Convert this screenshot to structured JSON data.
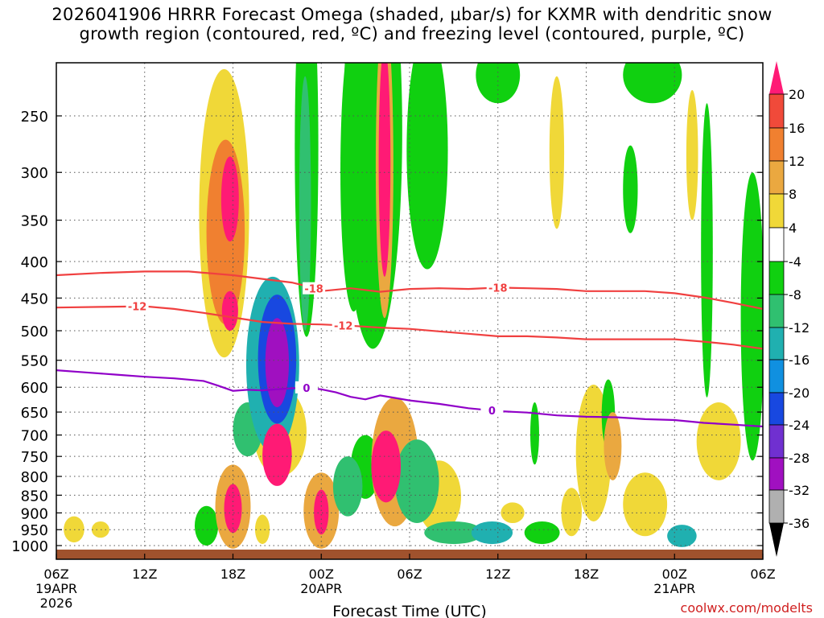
{
  "title_line1": "2026041906 HRRR Forecast Omega (shaded, μbar/s) for KXMR with dendritic snow",
  "title_line2": "growth region (contoured, red, ºC) and freezing level (contoured, purple, ºC)",
  "credit": "coolwx.com/modelts",
  "colors": {
    "zero_band": "#ffffff",
    "ground": "#a0522d",
    "dgz_contour": "#f04040",
    "freezing_contour": "#9000c8",
    "grid": "#909090"
  },
  "chart_data": {
    "type": "heatmap",
    "xlabel": "Forecast Time (UTC)",
    "x_ticks": [
      {
        "hour": 0,
        "label": "06Z",
        "date1": "19APR",
        "date2": "2026"
      },
      {
        "hour": 6,
        "label": "12Z",
        "date1": "",
        "date2": ""
      },
      {
        "hour": 12,
        "label": "18Z",
        "date1": "",
        "date2": ""
      },
      {
        "hour": 18,
        "label": "00Z",
        "date1": "20APR",
        "date2": ""
      },
      {
        "hour": 24,
        "label": "06Z",
        "date1": "",
        "date2": ""
      },
      {
        "hour": 30,
        "label": "12Z",
        "date1": "",
        "date2": ""
      },
      {
        "hour": 36,
        "label": "18Z",
        "date1": "",
        "date2": ""
      },
      {
        "hour": 42,
        "label": "00Z",
        "date1": "21APR",
        "date2": ""
      },
      {
        "hour": 48,
        "label": "06Z",
        "date1": "",
        "date2": ""
      }
    ],
    "xlim": [
      0,
      48
    ],
    "y_ticks": [
      250,
      300,
      350,
      400,
      450,
      500,
      550,
      600,
      650,
      700,
      750,
      800,
      850,
      900,
      950,
      1000
    ],
    "ylim": [
      200,
      1015
    ],
    "y_scale": "log-pressure",
    "colorbar": {
      "labels": [
        "20",
        "16",
        "12",
        "8",
        "4",
        "-4",
        "-8",
        "-12",
        "-16",
        "-20",
        "-24",
        "-28",
        "-32",
        "-36"
      ],
      "colors": [
        "#ff1a75",
        "#f04a3a",
        "#f08030",
        "#eaa840",
        "#f0d838",
        "#e8e846",
        "#ffffff",
        "#10d010",
        "#30c070",
        "#20b0b0",
        "#1090e0",
        "#1848e0",
        "#7030d0",
        "#a010c0",
        "#b0b0b0",
        "#000000"
      ]
    },
    "contours": [
      {
        "id": "dgz-minus18",
        "label": "-18",
        "label_hours": [
          17.5,
          30.0
        ],
        "points": [
          [
            0,
            418
          ],
          [
            3,
            415
          ],
          [
            6,
            413
          ],
          [
            9,
            413
          ],
          [
            12,
            418
          ],
          [
            14,
            423
          ],
          [
            16,
            428
          ],
          [
            17,
            433
          ],
          [
            18,
            440
          ],
          [
            20,
            436
          ],
          [
            22,
            441
          ],
          [
            24,
            437
          ],
          [
            26,
            436
          ],
          [
            28,
            437
          ],
          [
            30,
            435
          ],
          [
            32,
            436
          ],
          [
            34,
            437
          ],
          [
            36,
            440
          ],
          [
            38,
            440
          ],
          [
            40,
            440
          ],
          [
            42,
            443
          ],
          [
            44,
            449
          ],
          [
            46,
            457
          ],
          [
            48,
            466
          ]
        ]
      },
      {
        "id": "dgz-minus12",
        "label": "-12",
        "label_hours": [
          5.5,
          19.5
        ],
        "points": [
          [
            0,
            464
          ],
          [
            3,
            463
          ],
          [
            6,
            462
          ],
          [
            8,
            466
          ],
          [
            10,
            472
          ],
          [
            12,
            479
          ],
          [
            14,
            486
          ],
          [
            16,
            489
          ],
          [
            18,
            490
          ],
          [
            20,
            492
          ],
          [
            22,
            495
          ],
          [
            24,
            497
          ],
          [
            26,
            501
          ],
          [
            28,
            505
          ],
          [
            30,
            509
          ],
          [
            32,
            509
          ],
          [
            34,
            511
          ],
          [
            36,
            514
          ],
          [
            38,
            514
          ],
          [
            40,
            514
          ],
          [
            42,
            514
          ],
          [
            44,
            518
          ],
          [
            46,
            523
          ],
          [
            48,
            530
          ]
        ]
      },
      {
        "id": "freezing-0",
        "label": "0",
        "label_hours": [
          17.0,
          29.6
        ],
        "points": [
          [
            0,
            568
          ],
          [
            2,
            572
          ],
          [
            4,
            576
          ],
          [
            6,
            580
          ],
          [
            8,
            583
          ],
          [
            10,
            588
          ],
          [
            11,
            597
          ],
          [
            12,
            607
          ],
          [
            13,
            605
          ],
          [
            14,
            606
          ],
          [
            15,
            604
          ],
          [
            16,
            602
          ],
          [
            17,
            601
          ],
          [
            18,
            604
          ],
          [
            19,
            610
          ],
          [
            20,
            619
          ],
          [
            21,
            624
          ],
          [
            22,
            616
          ],
          [
            23,
            621
          ],
          [
            24,
            626
          ],
          [
            26,
            633
          ],
          [
            28,
            642
          ],
          [
            30,
            648
          ],
          [
            32,
            651
          ],
          [
            34,
            657
          ],
          [
            36,
            660
          ],
          [
            38,
            661
          ],
          [
            40,
            665
          ],
          [
            42,
            667
          ],
          [
            44,
            673
          ],
          [
            46,
            677
          ],
          [
            48,
            681
          ]
        ]
      }
    ],
    "omega_cells": [
      {
        "hour": 11.8,
        "p": 330,
        "w": 1.2,
        "h": 90,
        "value": 22
      },
      {
        "hour": 11.8,
        "p": 470,
        "w": 1.1,
        "h": 60,
        "value": 20
      },
      {
        "hour": 11.5,
        "p": 380,
        "w": 2.6,
        "h": 220,
        "value": 12
      },
      {
        "hour": 11.4,
        "p": 380,
        "w": 3.4,
        "h": 330,
        "value": 6
      },
      {
        "hour": 22.3,
        "p": 310,
        "w": 0.8,
        "h": 220,
        "value": 22
      },
      {
        "hour": 22.3,
        "p": 330,
        "w": 1.2,
        "h": 300,
        "value": 10
      },
      {
        "hour": 22.2,
        "p": 310,
        "w": 1.6,
        "h": 320,
        "value": 5
      },
      {
        "hour": 21.5,
        "p": 330,
        "w": 4.0,
        "h": 400,
        "value": -6
      },
      {
        "hour": 17.0,
        "p": 330,
        "w": 1.6,
        "h": 360,
        "value": -6
      },
      {
        "hour": 16.9,
        "p": 360,
        "w": 0.8,
        "h": 280,
        "value": -10
      },
      {
        "hour": 20.2,
        "p": 330,
        "w": 1.8,
        "h": 280,
        "value": -6
      },
      {
        "hour": 15.0,
        "p": 560,
        "w": 1.6,
        "h": 160,
        "value": -30
      },
      {
        "hour": 15.0,
        "p": 560,
        "w": 2.6,
        "h": 230,
        "value": -20
      },
      {
        "hour": 14.7,
        "p": 580,
        "w": 3.6,
        "h": 320,
        "value": -12
      },
      {
        "hour": 13.0,
        "p": 690,
        "w": 2.0,
        "h": 120,
        "value": -8
      },
      {
        "hour": 15.2,
        "p": 700,
        "w": 3.6,
        "h": 200,
        "value": 6
      },
      {
        "hour": 15.0,
        "p": 750,
        "w": 2.0,
        "h": 150,
        "value": 20
      },
      {
        "hour": 12.0,
        "p": 890,
        "w": 2.4,
        "h": 240,
        "value": 8
      },
      {
        "hour": 12.0,
        "p": 890,
        "w": 1.2,
        "h": 140,
        "value": 20
      },
      {
        "hour": 18.0,
        "p": 900,
        "w": 2.4,
        "h": 220,
        "value": 8
      },
      {
        "hour": 18.0,
        "p": 900,
        "w": 1.0,
        "h": 130,
        "value": 20
      },
      {
        "hour": 19.8,
        "p": 830,
        "w": 2.0,
        "h": 160,
        "value": -10
      },
      {
        "hour": 21.0,
        "p": 780,
        "w": 2.0,
        "h": 160,
        "value": -4
      },
      {
        "hour": 23.0,
        "p": 780,
        "w": 3.2,
        "h": 320,
        "value": 8
      },
      {
        "hour": 22.4,
        "p": 780,
        "w": 2.0,
        "h": 180,
        "value": 20
      },
      {
        "hour": 24.5,
        "p": 820,
        "w": 3.0,
        "h": 220,
        "value": -8
      },
      {
        "hour": 26.0,
        "p": 860,
        "w": 3.0,
        "h": 200,
        "value": 5
      },
      {
        "hour": 27.0,
        "p": 960,
        "w": 4.0,
        "h": 70,
        "value": -8
      },
      {
        "hour": 29.6,
        "p": 960,
        "w": 2.8,
        "h": 70,
        "value": -12
      },
      {
        "hour": 31.0,
        "p": 900,
        "w": 1.6,
        "h": 60,
        "value": 5
      },
      {
        "hour": 36.5,
        "p": 760,
        "w": 2.4,
        "h": 330,
        "value": 5
      },
      {
        "hour": 37.8,
        "p": 730,
        "w": 1.2,
        "h": 160,
        "value": 10
      },
      {
        "hour": 40.0,
        "p": 880,
        "w": 3.0,
        "h": 180,
        "value": 5
      },
      {
        "hour": 42.5,
        "p": 970,
        "w": 2.0,
        "h": 70,
        "value": -14
      },
      {
        "hour": 45.0,
        "p": 720,
        "w": 3.0,
        "h": 180,
        "value": 5
      },
      {
        "hour": 47.3,
        "p": 530,
        "w": 1.6,
        "h": 460,
        "value": -6
      },
      {
        "hour": 44.2,
        "p": 430,
        "w": 0.8,
        "h": 380,
        "value": -6
      },
      {
        "hour": 43.2,
        "p": 290,
        "w": 0.8,
        "h": 120,
        "value": 5
      },
      {
        "hour": 39.0,
        "p": 320,
        "w": 1.0,
        "h": 90,
        "value": -6
      },
      {
        "hour": 34.0,
        "p": 290,
        "w": 1.0,
        "h": 140,
        "value": 5
      },
      {
        "hour": 30.0,
        "p": 220,
        "w": 3.0,
        "h": 40,
        "value": -6
      },
      {
        "hour": 40.5,
        "p": 220,
        "w": 4.0,
        "h": 40,
        "value": -6
      },
      {
        "hour": 25.2,
        "p": 300,
        "w": 2.8,
        "h": 220,
        "value": -6
      },
      {
        "hour": 1.2,
        "p": 950,
        "w": 1.4,
        "h": 80,
        "value": 5
      },
      {
        "hour": 3.0,
        "p": 950,
        "w": 1.2,
        "h": 50,
        "value": 5
      },
      {
        "hour": 10.2,
        "p": 940,
        "w": 1.6,
        "h": 120,
        "value": -6
      },
      {
        "hour": 14.0,
        "p": 950,
        "w": 1.0,
        "h": 90,
        "value": 5
      },
      {
        "hour": 33.0,
        "p": 960,
        "w": 2.4,
        "h": 70,
        "value": -6
      },
      {
        "hour": 35.0,
        "p": 900,
        "w": 1.4,
        "h": 140,
        "value": 5
      },
      {
        "hour": 37.5,
        "p": 660,
        "w": 0.9,
        "h": 150,
        "value": -6
      },
      {
        "hour": 32.5,
        "p": 700,
        "w": 0.6,
        "h": 140,
        "value": -6
      }
    ]
  }
}
